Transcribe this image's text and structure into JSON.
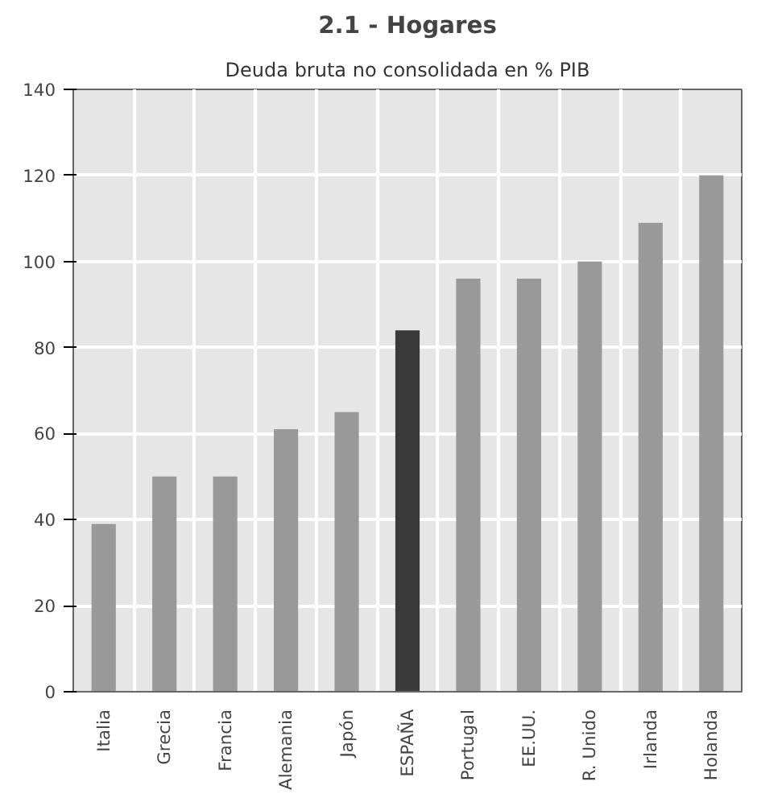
{
  "chart_data": {
    "type": "bar",
    "title": "2.1 - Hogares",
    "subtitle": "Deuda bruta no consolidada en % PIB",
    "categories": [
      "Italia",
      "Grecia",
      "Francia",
      "Alemania",
      "Japón",
      "ESPAÑA",
      "Portugal",
      "EE.UU.",
      "R. Unido",
      "Irlanda",
      "Holanda"
    ],
    "values": [
      39,
      50,
      50,
      61,
      65,
      84,
      96,
      96,
      100,
      109,
      120
    ],
    "colors": [
      "#999999",
      "#999999",
      "#999999",
      "#999999",
      "#999999",
      "#3a3a3a",
      "#999999",
      "#999999",
      "#999999",
      "#999999",
      "#999999"
    ],
    "ylim": [
      0,
      140
    ],
    "yticks": [
      0,
      20,
      40,
      60,
      80,
      100,
      120,
      140
    ],
    "grid": true
  }
}
